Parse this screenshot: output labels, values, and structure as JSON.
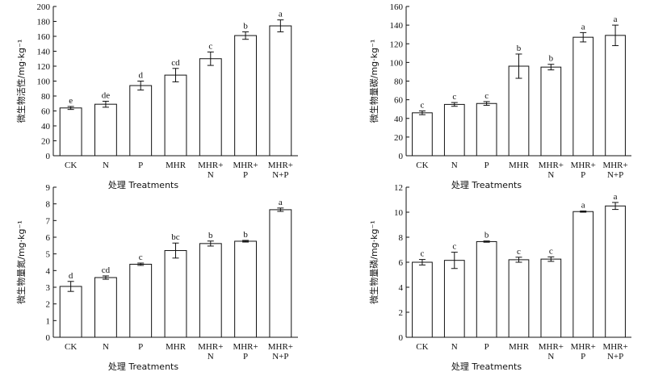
{
  "chart_data": [
    {
      "type": "bar",
      "ylabel": "微生物活性/mg·kg⁻¹",
      "xlabel": "处理 Treatments",
      "ylim": [
        0,
        200
      ],
      "ystep": 20,
      "categories": [
        "CK",
        "N",
        "P",
        "MHR",
        "MHR+\nN",
        "MHR+\nP",
        "MHR+\nN+P"
      ],
      "values": [
        64,
        69,
        94,
        108,
        130,
        161,
        174
      ],
      "errors": [
        2,
        4,
        6,
        9,
        9,
        5,
        8
      ],
      "letters": [
        "e",
        "de",
        "d",
        "cd",
        "c",
        "b",
        "a"
      ],
      "grid": false
    },
    {
      "type": "bar",
      "ylabel": "微生物量碳/mg·kg⁻¹",
      "xlabel": "处理 Treatments",
      "ylim": [
        0,
        160
      ],
      "ystep": 20,
      "categories": [
        "CK",
        "N",
        "P",
        "MHR",
        "MHR+\nN",
        "MHR+\nP",
        "MHR+\nN+P"
      ],
      "values": [
        46,
        55,
        56,
        96,
        95,
        127,
        129
      ],
      "errors": [
        2,
        2,
        2,
        13,
        3,
        5,
        11
      ],
      "letters": [
        "c",
        "c",
        "c",
        "b",
        "b",
        "a",
        "a"
      ],
      "grid": false
    },
    {
      "type": "bar",
      "ylabel": "微生物量氮/mg·kg⁻¹",
      "xlabel": "处理 Treatments",
      "ylim": [
        0,
        9
      ],
      "ystep": 1,
      "categories": [
        "CK",
        "N",
        "P",
        "MHR",
        "MHR+\nN",
        "MHR+\nP",
        "MHR+\nN+P"
      ],
      "values": [
        3.05,
        3.58,
        4.38,
        5.2,
        5.62,
        5.76,
        7.65
      ],
      "errors": [
        0.3,
        0.1,
        0.07,
        0.45,
        0.15,
        0.05,
        0.1
      ],
      "letters": [
        "d",
        "cd",
        "c",
        "bc",
        "b",
        "b",
        "a"
      ],
      "grid": false
    },
    {
      "type": "bar",
      "ylabel": "微生物量磷/mg·kg⁻¹",
      "xlabel": "处理 Treatments",
      "ylim": [
        0,
        12
      ],
      "ystep": 2,
      "categories": [
        "CK",
        "N",
        "P",
        "MHR",
        "MHR+\nN",
        "MHR+\nP",
        "MHR+\nN+P"
      ],
      "values": [
        6.0,
        6.15,
        7.65,
        6.2,
        6.25,
        10.05,
        10.5
      ],
      "errors": [
        0.22,
        0.65,
        0.05,
        0.2,
        0.18,
        0.05,
        0.28
      ],
      "letters": [
        "c",
        "c",
        "b",
        "c",
        "c",
        "a",
        "a"
      ],
      "grid": false
    }
  ]
}
